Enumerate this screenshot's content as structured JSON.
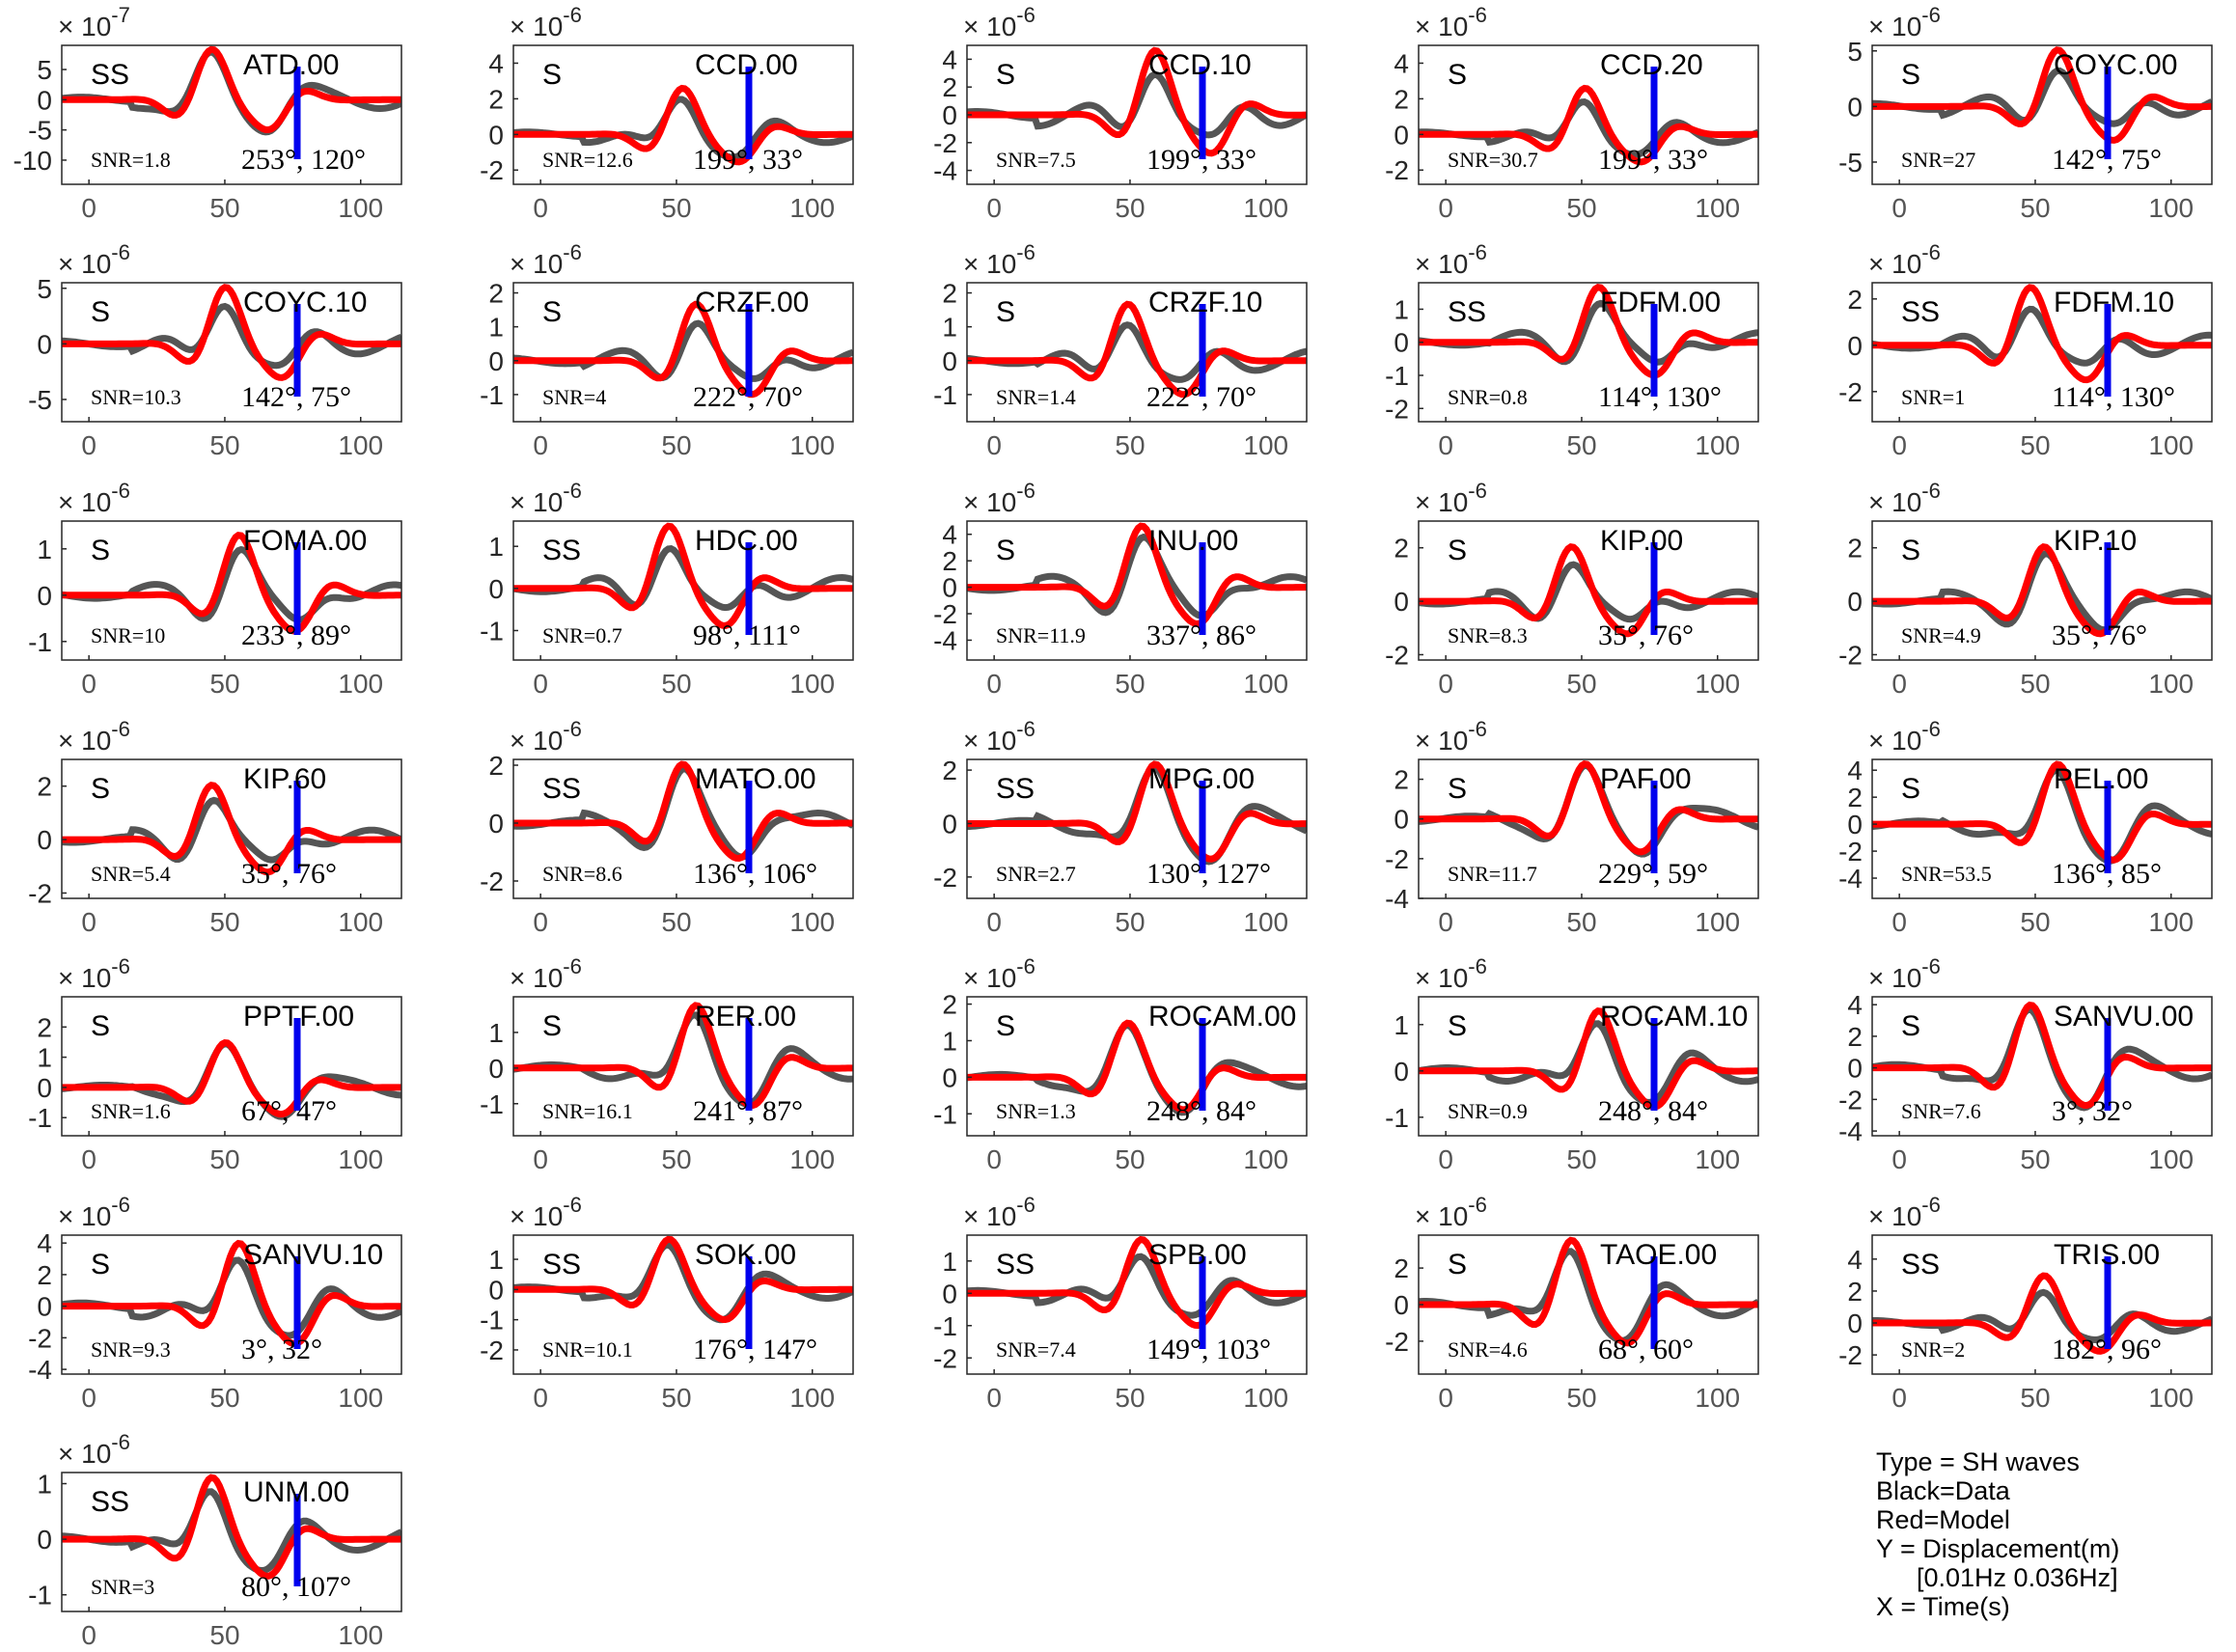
{
  "chart_data": {
    "type": "line",
    "layout": {
      "columns": 5,
      "rows": 7
    },
    "series_colors": {
      "data": "#555555",
      "model": "#ff0000",
      "marker": "#0000ee"
    },
    "x_ticks": [
      0,
      50,
      100
    ],
    "xlim": [
      -10,
      115
    ],
    "panels": [
      {
        "station": "ATD.00",
        "phase": "SS",
        "snr": "SNR=1.8",
        "angles": "253°, 120°",
        "exp": "-7",
        "ylim": [
          -14,
          9
        ],
        "yticks": [
          5,
          0,
          -5,
          -10
        ],
        "ytick_labels": [
          "5",
          "0",
          "-5",
          "-10"
        ]
      },
      {
        "station": "CCD.00",
        "phase": "S",
        "snr": "SNR=12.6",
        "angles": "199°, 33°",
        "exp": "-6",
        "ylim": [
          -2.8,
          5
        ],
        "yticks": [
          4,
          2,
          0,
          -2
        ],
        "ytick_labels": [
          "4",
          "2",
          "0",
          "-2"
        ]
      },
      {
        "station": "CCD.10",
        "phase": "S",
        "snr": "SNR=7.5",
        "angles": "199°, 33°",
        "exp": "-6",
        "ylim": [
          -5,
          5
        ],
        "yticks": [
          4,
          2,
          0,
          -2,
          -4
        ],
        "ytick_labels": [
          "4",
          "2",
          "0",
          "-2",
          "-4"
        ]
      },
      {
        "station": "CCD.20",
        "phase": "S",
        "snr": "SNR=30.7",
        "angles": "199°, 33°",
        "exp": "-6",
        "ylim": [
          -2.8,
          5
        ],
        "yticks": [
          4,
          2,
          0,
          -2
        ],
        "ytick_labels": [
          "4",
          "2",
          "0",
          "-2"
        ]
      },
      {
        "station": "COYC.00",
        "phase": "S",
        "snr": "SNR=27",
        "angles": "142°, 75°",
        "exp": "-6",
        "ylim": [
          -7,
          5.5
        ],
        "yticks": [
          5,
          0,
          -5
        ],
        "ytick_labels": [
          "5",
          "0",
          "-5"
        ]
      },
      {
        "station": "COYC.10",
        "phase": "S",
        "snr": "SNR=10.3",
        "angles": "142°, 75°",
        "exp": "-6",
        "ylim": [
          -7,
          5.5
        ],
        "yticks": [
          5,
          0,
          -5
        ],
        "ytick_labels": [
          "5",
          "0",
          "-5"
        ]
      },
      {
        "station": "CRZF.00",
        "phase": "S",
        "snr": "SNR=4",
        "angles": "222°, 70°",
        "exp": "-6",
        "ylim": [
          -1.8,
          2.3
        ],
        "yticks": [
          2,
          1,
          0,
          -1
        ],
        "ytick_labels": [
          "2",
          "1",
          "0",
          "-1"
        ]
      },
      {
        "station": "CRZF.10",
        "phase": "S",
        "snr": "SNR=1.4",
        "angles": "222°, 70°",
        "exp": "-6",
        "ylim": [
          -1.8,
          2.3
        ],
        "yticks": [
          2,
          1,
          0,
          -1
        ],
        "ytick_labels": [
          "2",
          "1",
          "0",
          "-1"
        ]
      },
      {
        "station": "FDFM.00",
        "phase": "SS",
        "snr": "SNR=0.8",
        "angles": "114°, 130°",
        "exp": "-6",
        "ylim": [
          -2.4,
          1.8
        ],
        "yticks": [
          1,
          0,
          -1,
          -2
        ],
        "ytick_labels": [
          "1",
          "0",
          "-1",
          "-2"
        ]
      },
      {
        "station": "FDFM.10",
        "phase": "SS",
        "snr": "SNR=1",
        "angles": "114°, 130°",
        "exp": "-6",
        "ylim": [
          -3.3,
          2.7
        ],
        "yticks": [
          2,
          0,
          -2
        ],
        "ytick_labels": [
          "2",
          "0",
          "-2"
        ]
      },
      {
        "station": "FOMA.00",
        "phase": "S",
        "snr": "SNR=10",
        "angles": "233°, 89°",
        "exp": "-6",
        "ylim": [
          -1.4,
          1.6
        ],
        "yticks": [
          1,
          0,
          -1
        ],
        "ytick_labels": [
          "1",
          "0",
          "-1"
        ]
      },
      {
        "station": "HDC.00",
        "phase": "SS",
        "snr": "SNR=0.7",
        "angles": "98°, 111°",
        "exp": "-6",
        "ylim": [
          -1.7,
          1.6
        ],
        "yticks": [
          1,
          0,
          -1
        ],
        "ytick_labels": [
          "1",
          "0",
          "-1"
        ]
      },
      {
        "station": "INU.00",
        "phase": "S",
        "snr": "SNR=11.9",
        "angles": "337°, 86°",
        "exp": "-6",
        "ylim": [
          -5.5,
          5
        ],
        "yticks": [
          4,
          2,
          0,
          -2,
          -4
        ],
        "ytick_labels": [
          "4",
          "2",
          "0",
          "-2",
          "-4"
        ]
      },
      {
        "station": "KIP.00",
        "phase": "S",
        "snr": "SNR=8.3",
        "angles": "35°, 76°",
        "exp": "-6",
        "ylim": [
          -2.2,
          3
        ],
        "yticks": [
          2,
          0,
          -2
        ],
        "ytick_labels": [
          "2",
          "0",
          "-2"
        ]
      },
      {
        "station": "KIP.10",
        "phase": "S",
        "snr": "SNR=4.9",
        "angles": "35°, 76°",
        "exp": "-6",
        "ylim": [
          -2.2,
          3
        ],
        "yticks": [
          2,
          0,
          -2
        ],
        "ytick_labels": [
          "2",
          "0",
          "-2"
        ]
      },
      {
        "station": "KIP.60",
        "phase": "S",
        "snr": "SNR=5.4",
        "angles": "35°, 76°",
        "exp": "-6",
        "ylim": [
          -2.2,
          3
        ],
        "yticks": [
          2,
          0,
          -2
        ],
        "ytick_labels": [
          "2",
          "0",
          "-2"
        ]
      },
      {
        "station": "MATO.00",
        "phase": "SS",
        "snr": "SNR=8.6",
        "angles": "136°, 106°",
        "exp": "-6",
        "ylim": [
          -2.6,
          2.2
        ],
        "yticks": [
          2,
          0,
          -2
        ],
        "ytick_labels": [
          "2",
          "0",
          "-2"
        ]
      },
      {
        "station": "MPG.00",
        "phase": "SS",
        "snr": "SNR=2.7",
        "angles": "130°, 127°",
        "exp": "-6",
        "ylim": [
          -2.8,
          2.4
        ],
        "yticks": [
          2,
          0,
          -2
        ],
        "ytick_labels": [
          "2",
          "0",
          "-2"
        ]
      },
      {
        "station": "PAF.00",
        "phase": "S",
        "snr": "SNR=11.7",
        "angles": "229°, 59°",
        "exp": "-6",
        "ylim": [
          -4,
          3
        ],
        "yticks": [
          2,
          0,
          -2,
          -4
        ],
        "ytick_labels": [
          "2",
          "0",
          "-2",
          "-4"
        ]
      },
      {
        "station": "PEL.00",
        "phase": "S",
        "snr": "SNR=53.5",
        "angles": "136°, 85°",
        "exp": "-6",
        "ylim": [
          -5.5,
          4.8
        ],
        "yticks": [
          4,
          2,
          0,
          -2,
          -4
        ],
        "ytick_labels": [
          "4",
          "2",
          "0",
          "-2",
          "-4"
        ]
      },
      {
        "station": "PPTF.00",
        "phase": "S",
        "snr": "SNR=1.6",
        "angles": "67°, 47°",
        "exp": "-6",
        "ylim": [
          -1.6,
          3
        ],
        "yticks": [
          2,
          1,
          0,
          -1
        ],
        "ytick_labels": [
          "2",
          "1",
          "0",
          "-1"
        ]
      },
      {
        "station": "RER.00",
        "phase": "S",
        "snr": "SNR=16.1",
        "angles": "241°, 87°",
        "exp": "-6",
        "ylim": [
          -1.9,
          2
        ],
        "yticks": [
          1,
          0,
          -1
        ],
        "ytick_labels": [
          "1",
          "0",
          "-1"
        ]
      },
      {
        "station": "ROCAM.00",
        "phase": "S",
        "snr": "SNR=1.3",
        "angles": "248°, 84°",
        "exp": "-6",
        "ylim": [
          -1.6,
          2.2
        ],
        "yticks": [
          2,
          1,
          0,
          -1
        ],
        "ytick_labels": [
          "2",
          "1",
          "0",
          "-1"
        ]
      },
      {
        "station": "ROCAM.10",
        "phase": "S",
        "snr": "SNR=0.9",
        "angles": "248°, 84°",
        "exp": "-6",
        "ylim": [
          -1.4,
          1.6
        ],
        "yticks": [
          1,
          0,
          -1
        ],
        "ytick_labels": [
          "1",
          "0",
          "-1"
        ]
      },
      {
        "station": "SANVU.00",
        "phase": "S",
        "snr": "SNR=7.6",
        "angles": "3°, 32°",
        "exp": "-6",
        "ylim": [
          -4.3,
          4.5
        ],
        "yticks": [
          4,
          2,
          0,
          -2,
          -4
        ],
        "ytick_labels": [
          "4",
          "2",
          "0",
          "-2",
          "-4"
        ]
      },
      {
        "station": "SANVU.10",
        "phase": "S",
        "snr": "SNR=9.3",
        "angles": "3°, 32°",
        "exp": "-6",
        "ylim": [
          -4.3,
          4.5
        ],
        "yticks": [
          4,
          2,
          0,
          -2,
          -4
        ],
        "ytick_labels": [
          "4",
          "2",
          "0",
          "-2",
          "-4"
        ]
      },
      {
        "station": "SOK.00",
        "phase": "SS",
        "snr": "SNR=10.1",
        "angles": "176°, 147°",
        "exp": "-6",
        "ylim": [
          -2.8,
          1.8
        ],
        "yticks": [
          1,
          0,
          -1,
          -2
        ],
        "ytick_labels": [
          "1",
          "0",
          "-1",
          "-2"
        ]
      },
      {
        "station": "SPB.00",
        "phase": "SS",
        "snr": "SNR=7.4",
        "angles": "149°, 103°",
        "exp": "-6",
        "ylim": [
          -2.5,
          1.8
        ],
        "yticks": [
          1,
          0,
          -1,
          -2
        ],
        "ytick_labels": [
          "1",
          "0",
          "-1",
          "-2"
        ]
      },
      {
        "station": "TAOE.00",
        "phase": "S",
        "snr": "SNR=4.6",
        "angles": "68°, 60°",
        "exp": "-6",
        "ylim": [
          -3.8,
          3.8
        ],
        "yticks": [
          2,
          0,
          -2
        ],
        "ytick_labels": [
          "2",
          "0",
          "-2"
        ]
      },
      {
        "station": "TRIS.00",
        "phase": "SS",
        "snr": "SNR=2",
        "angles": "182°, 96°",
        "exp": "-6",
        "ylim": [
          -3.2,
          5.5
        ],
        "yticks": [
          4,
          2,
          0,
          -2
        ],
        "ytick_labels": [
          "4",
          "2",
          "0",
          "-2"
        ]
      },
      {
        "station": "UNM.00",
        "phase": "SS",
        "snr": "SNR=3",
        "angles": "80°, 107°",
        "exp": "-6",
        "ylim": [
          -1.3,
          1.2
        ],
        "yticks": [
          1,
          0,
          -1
        ],
        "ytick_labels": [
          "1",
          "0",
          "-1"
        ]
      }
    ]
  },
  "legend": {
    "type": "Type = SH waves",
    "black": "Black=Data",
    "red": "Red=Model",
    "y": "Y = Displacement(m)",
    "band": "[0.01Hz 0.036Hz]",
    "x": "X = Time(s)"
  }
}
